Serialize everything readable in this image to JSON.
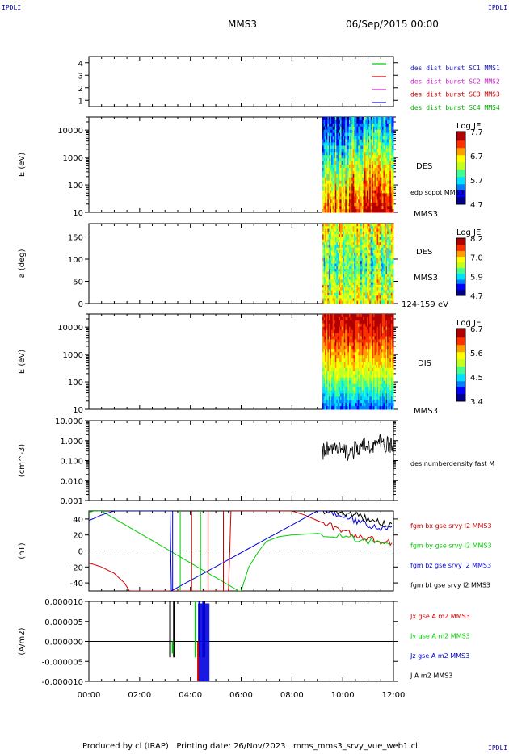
{
  "header": {
    "corner_label": "IPDLI",
    "spacecraft": "MMS3",
    "datetime": "06/Sep/2015 00:00"
  },
  "footer": {
    "text": "Produced by cl (IRAP)   Printing date: 26/Nov/2023   mms_mms3_srvy_vue_web1.cl"
  },
  "colors": {
    "spec_scale": [
      "#00008b",
      "#0000ff",
      "#0080ff",
      "#00e0ff",
      "#40ff90",
      "#c0ff20",
      "#ffff00",
      "#ffa000",
      "#ff3000",
      "#b00000"
    ]
  },
  "time_axis": {
    "ticks": [
      "00:00",
      "02:00",
      "04:00",
      "06:00",
      "08:00",
      "10:00",
      "12:00"
    ],
    "range_hours": [
      0,
      12
    ]
  },
  "chart_data": [
    {
      "type": "scatter",
      "id": "burst",
      "ylabel": "",
      "ylim": [
        0.5,
        4.5
      ],
      "y_ticks": [
        "1",
        "2",
        "3",
        "4"
      ],
      "legend": [
        {
          "label": "des dist burst SC1 MMS1",
          "color": "#1a1ad0",
          "key_color": "#00cc00"
        },
        {
          "label": "des dist burst SC2 MMS2",
          "color": "#d020d0",
          "key_color": "#d00000"
        },
        {
          "label": "des dist burst SC3 MMS3",
          "color": "#d00000",
          "key_color": "#d020d0"
        },
        {
          "label": "des dist burst SC4 MMS4",
          "color": "#00b000",
          "key_color": "#1a1ad0"
        }
      ]
    },
    {
      "type": "heatmap",
      "id": "des_energy",
      "ylabel": "E (eV)",
      "yscale": "log",
      "ylim": [
        10,
        30000
      ],
      "y_ticks": [
        "10",
        "100",
        "1000",
        "10000"
      ],
      "data_start_hour": 9.2,
      "right_labels": [
        "DES",
        "edp scpot MMS3",
        "MMS3"
      ],
      "colorbar": {
        "title": "Log JE",
        "ticks": [
          "7.7",
          "6.7",
          "5.7",
          "4.7"
        ]
      }
    },
    {
      "type": "heatmap",
      "id": "des_pitch",
      "ylabel": "a (deg)",
      "ylim": [
        0,
        180
      ],
      "y_ticks": [
        "0",
        "50",
        "100",
        "150"
      ],
      "data_start_hour": 9.2,
      "right_labels": [
        "DES",
        "MMS3",
        "124-159 eV"
      ],
      "colorbar": {
        "title": "Log JE",
        "ticks": [
          "8.2",
          "7.0",
          "5.9",
          "4.7"
        ]
      }
    },
    {
      "type": "heatmap",
      "id": "dis_energy",
      "ylabel": "E (eV)",
      "yscale": "log",
      "ylim": [
        10,
        30000
      ],
      "y_ticks": [
        "10",
        "100",
        "1000",
        "10000"
      ],
      "data_start_hour": 9.2,
      "right_labels": [
        "DIS",
        "MMS3"
      ],
      "colorbar": {
        "title": "Log JE",
        "ticks": [
          "6.7",
          "5.6",
          "4.5",
          "3.4"
        ]
      }
    },
    {
      "type": "line",
      "id": "density",
      "ylabel": "(cm^-3)",
      "yscale": "log",
      "ylim": [
        0.001,
        10
      ],
      "y_ticks": [
        "0.001",
        "0.010",
        "0.100",
        "1.000",
        "10.000"
      ],
      "series": [
        {
          "name": "des numberdensity fast M",
          "color": "#000000",
          "x": [
            9.2,
            9.4,
            9.7,
            10.0,
            10.3,
            10.6,
            10.9,
            11.2,
            11.5,
            11.8,
            12.0
          ],
          "y": [
            0.25,
            0.45,
            0.35,
            0.3,
            0.25,
            0.4,
            0.5,
            0.6,
            0.8,
            0.55,
            0.5
          ]
        }
      ]
    },
    {
      "type": "line",
      "id": "bfield",
      "ylabel": "(nT)",
      "ylim": [
        -50,
        50
      ],
      "y_ticks": [
        "-40",
        "-20",
        "0",
        "20",
        "40"
      ],
      "series": [
        {
          "name": "fgm bx gse srvy l2 MMS3",
          "color": "#d00000",
          "x": [
            0,
            0.5,
            1.0,
            1.4,
            1.6,
            5.5,
            5.6,
            7.0,
            7.5,
            8.0,
            8.5,
            9.0,
            9.5,
            10.0,
            10.5,
            11.0,
            11.5,
            12.0
          ],
          "y": [
            -15,
            -20,
            -28,
            -40,
            -50,
            -50,
            50,
            50,
            50,
            50,
            45,
            38,
            32,
            25,
            20,
            15,
            12,
            10
          ]
        },
        {
          "name": "fgm by gse srvy l2 MMS3",
          "color": "#00cc00",
          "x": [
            0,
            0.2,
            0.5,
            5.9,
            6.0,
            6.3,
            6.7,
            7.0,
            7.5,
            8.0,
            9.0,
            10.0,
            11.0,
            12.0
          ],
          "y": [
            48,
            50,
            50,
            -50,
            -50,
            -20,
            0,
            12,
            18,
            20,
            22,
            18,
            12,
            10
          ]
        },
        {
          "name": "fgm bz gse srvy l2 MMS3",
          "color": "#0000dd",
          "x": [
            0,
            0.5,
            1.0,
            3.2,
            3.25,
            9.0,
            9.5,
            10.0,
            10.5,
            11.0,
            11.5,
            12.0
          ],
          "y": [
            38,
            45,
            50,
            50,
            -50,
            50,
            50,
            42,
            38,
            33,
            28,
            30
          ]
        },
        {
          "name": "fgm bt gse srvy l2 MMS3",
          "color": "#000000",
          "x": [
            9.2,
            9.5,
            10.0,
            10.5,
            11.0,
            11.5,
            12.0
          ],
          "y": [
            50,
            50,
            48,
            45,
            40,
            35,
            33
          ]
        }
      ]
    },
    {
      "type": "line",
      "id": "current",
      "ylabel": "(A/m2)",
      "ylim": [
        -1e-05,
        1e-05
      ],
      "y_ticks": [
        "-0.000010",
        "-0.000005",
        "0.000000",
        "0.000005",
        "0.000010"
      ],
      "series": [
        {
          "name": "Jx gse A m2 MMS3",
          "color": "#d00000"
        },
        {
          "name": "Jy gse A m2 MMS3",
          "color": "#00cc00"
        },
        {
          "name": "Jz gse A m2 MMS3",
          "color": "#0000dd"
        },
        {
          "name": "J A m2 MMS3",
          "color": "#000000"
        }
      ]
    }
  ]
}
